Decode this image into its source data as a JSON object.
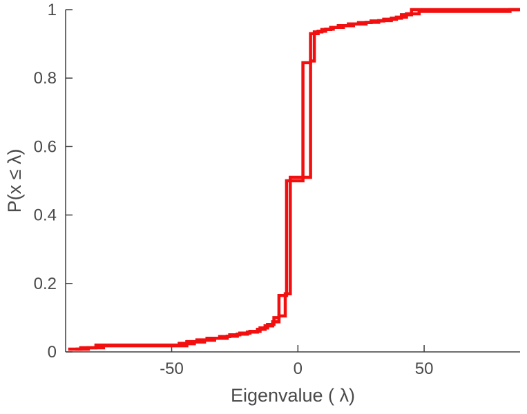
{
  "figure": {
    "background": "#ffffff"
  },
  "chart_data": {
    "type": "line",
    "subtype": "ecdf-step",
    "title": "",
    "xlabel": "Eigenvalue ( λ)",
    "ylabel": "P(x ≤ λ)",
    "xlim": [
      -92,
      88
    ],
    "ylim": [
      0,
      1
    ],
    "xticks": [
      -50,
      0,
      50
    ],
    "xtick_labels": [
      "-50",
      "0",
      "50"
    ],
    "yticks": [
      0,
      0.2,
      0.4,
      0.6,
      0.8,
      1
    ],
    "ytick_labels": [
      "0",
      "0.2",
      "0.4",
      "0.6",
      "0.8",
      "1"
    ],
    "grid": false,
    "legend": null,
    "axis_color": "#3d3d3d",
    "tick_label_color": "#4a4a4a",
    "line_width": 4.5,
    "series": [
      {
        "name": "ecdf-curve-1",
        "color": "#f20f0f",
        "x": [
          -91,
          -86,
          -80,
          -47,
          -44,
          -40,
          -36,
          -31,
          -27,
          -23,
          -19,
          -15,
          -12,
          -9.5,
          -7.5,
          -4.5,
          2,
          5,
          8,
          11,
          14,
          18,
          22,
          27,
          32,
          37,
          41,
          45,
          88
        ],
        "y": [
          0.008,
          0.012,
          0.02,
          0.025,
          0.03,
          0.035,
          0.04,
          0.045,
          0.05,
          0.055,
          0.06,
          0.07,
          0.08,
          0.1,
          0.165,
          0.5,
          0.845,
          0.93,
          0.937,
          0.943,
          0.948,
          0.953,
          0.958,
          0.963,
          0.968,
          0.975,
          0.985,
          1.0,
          1.0
        ]
      },
      {
        "name": "ecdf-curve-2",
        "color": "#f20f0f",
        "x": [
          -88,
          -83,
          -77,
          -44,
          -41,
          -37,
          -33,
          -28,
          -24,
          -20,
          -16,
          -13,
          -10,
          -7.5,
          -5,
          -3,
          5,
          6.5,
          9.5,
          13,
          16,
          20,
          24,
          29,
          34,
          39,
          43,
          48,
          84,
          88
        ],
        "y": [
          0.008,
          0.012,
          0.018,
          0.024,
          0.029,
          0.034,
          0.04,
          0.046,
          0.052,
          0.058,
          0.066,
          0.076,
          0.088,
          0.105,
          0.17,
          0.51,
          0.85,
          0.935,
          0.942,
          0.948,
          0.953,
          0.958,
          0.962,
          0.967,
          0.972,
          0.978,
          0.988,
          0.995,
          1.0,
          1.0
        ]
      }
    ]
  }
}
